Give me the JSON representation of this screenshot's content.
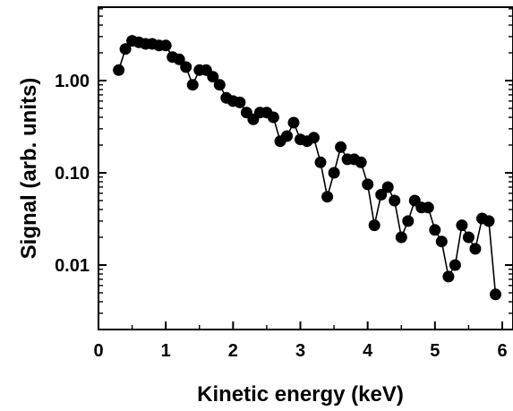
{
  "chart_data": {
    "type": "scatter",
    "xlabel": "Kinetic energy (keV)",
    "ylabel": "Signal (arb. units)",
    "xlim": [
      0,
      6
    ],
    "ylim": [
      0.002,
      5
    ],
    "yscale": "log",
    "grid": false,
    "legend": "none",
    "x_ticks": [
      {
        "value": 0,
        "label": "0"
      },
      {
        "value": 1,
        "label": "1"
      },
      {
        "value": 2,
        "label": "2"
      },
      {
        "value": 3,
        "label": "3"
      },
      {
        "value": 4,
        "label": "4"
      },
      {
        "value": 5,
        "label": "5"
      },
      {
        "value": 6,
        "label": "6"
      }
    ],
    "y_ticks": [
      {
        "value": 1,
        "label": "1.00"
      },
      {
        "value": 0.1,
        "label": "0.10"
      },
      {
        "value": 0.01,
        "label": "0.01"
      }
    ],
    "series": [
      {
        "marker": "filled-circle",
        "line": "solid",
        "color": "#000000",
        "x": [
          0.3,
          0.4,
          0.5,
          0.6,
          0.7,
          0.8,
          0.9,
          1.0,
          1.1,
          1.2,
          1.3,
          1.4,
          1.5,
          1.6,
          1.7,
          1.8,
          1.9,
          2.0,
          2.1,
          2.2,
          2.3,
          2.4,
          2.5,
          2.6,
          2.7,
          2.8,
          2.9,
          3.0,
          3.1,
          3.2,
          3.3,
          3.4,
          3.5,
          3.6,
          3.7,
          3.8,
          3.9,
          4.0,
          4.1,
          4.2,
          4.3,
          4.4,
          4.5,
          4.6,
          4.7,
          4.8,
          4.9,
          5.0,
          5.1,
          5.2,
          5.3,
          5.4,
          5.5,
          5.6,
          5.7,
          5.8,
          5.9
        ],
        "y": [
          1.3,
          2.2,
          2.7,
          2.6,
          2.5,
          2.5,
          2.4,
          2.4,
          1.8,
          1.7,
          1.4,
          0.9,
          1.3,
          1.3,
          1.1,
          0.9,
          0.65,
          0.6,
          0.58,
          0.45,
          0.38,
          0.45,
          0.45,
          0.4,
          0.22,
          0.25,
          0.35,
          0.23,
          0.22,
          0.24,
          0.13,
          0.055,
          0.1,
          0.19,
          0.14,
          0.14,
          0.13,
          0.075,
          0.027,
          0.058,
          0.07,
          0.05,
          0.02,
          0.03,
          0.05,
          0.042,
          0.042,
          0.024,
          0.018,
          0.0075,
          0.01,
          0.027,
          0.02,
          0.015,
          0.032,
          0.03,
          0.0048
        ]
      }
    ]
  }
}
